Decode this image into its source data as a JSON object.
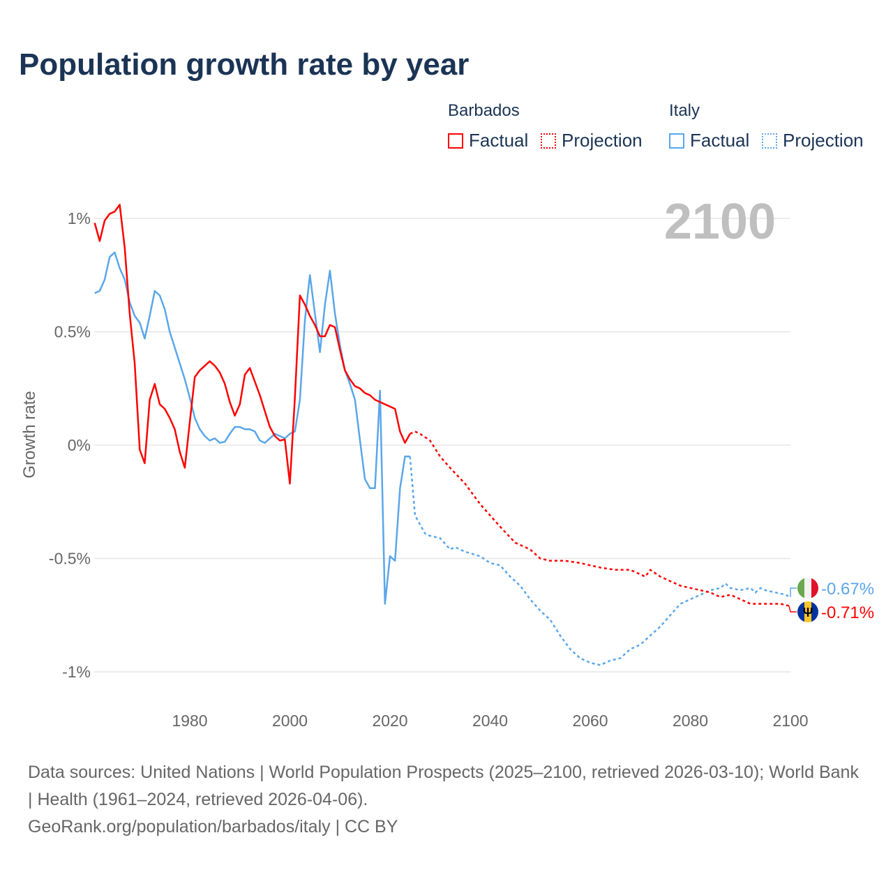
{
  "colors": {
    "barbados": "#ff0000",
    "italy": "#5aa6ea",
    "grid": "#e6e6e6",
    "axis_text": "#666666",
    "year_label": "#bfbfbf"
  },
  "legend": {
    "groups": [
      {
        "name": "Barbados",
        "factual": "Factual",
        "projection": "Projection"
      },
      {
        "name": "Italy",
        "factual": "Factual",
        "projection": "Projection"
      }
    ]
  },
  "footer": {
    "sources": "Data sources: United Nations | World Population Prospects (2025–2100, retrieved 2026-03-10); World Bank | Health (1961–2024, retrieved 2026-04-06).",
    "credit": "GeoRank.org/population/barbados/italy | CC BY"
  },
  "chart_data": {
    "type": "line",
    "title": "Population growth rate by year",
    "ylabel": "Growth rate",
    "xlabel": "",
    "current_year_label": "2100",
    "xlim": [
      1961,
      2100
    ],
    "ylim": [
      -1.15,
      1.1
    ],
    "xticks": [
      1980,
      2000,
      2020,
      2040,
      2060,
      2080,
      2100
    ],
    "yticks": [
      {
        "v": 1,
        "label": "1%"
      },
      {
        "v": 0.5,
        "label": "0.5%"
      },
      {
        "v": 0,
        "label": "0%"
      },
      {
        "v": -0.5,
        "label": "-0.5%"
      },
      {
        "v": -1,
        "label": "-1%"
      }
    ],
    "series": [
      {
        "name": "Barbados",
        "color": "#ff0000",
        "end_label": "-0.71%",
        "factual": {
          "start": 1961,
          "values": [
            0.98,
            0.9,
            0.99,
            1.02,
            1.03,
            1.06,
            0.87,
            0.58,
            0.36,
            -0.02,
            -0.08,
            0.2,
            0.27,
            0.18,
            0.16,
            0.12,
            0.07,
            -0.03,
            -0.1,
            0.1,
            0.3,
            0.33,
            0.35,
            0.37,
            0.35,
            0.32,
            0.27,
            0.19,
            0.13,
            0.18,
            0.31,
            0.34,
            0.28,
            0.22,
            0.15,
            0.08,
            0.04,
            0.02,
            0.025,
            -0.17,
            0.21,
            0.66,
            0.62,
            0.57,
            0.53,
            0.48,
            0.48,
            0.53,
            0.52,
            0.42,
            0.33,
            0.29,
            0.26,
            0.25,
            0.23,
            0.22,
            0.2,
            0.19,
            0.18,
            0.17,
            0.16,
            0.06,
            0.01,
            0.05
          ]
        },
        "projection": {
          "x": [
            2024,
            2025,
            2026,
            2028,
            2030,
            2032,
            2035,
            2038,
            2040,
            2042,
            2045,
            2048,
            2050,
            2052,
            2055,
            2058,
            2060,
            2062,
            2065,
            2068,
            2070,
            2071,
            2072,
            2074,
            2076,
            2078,
            2080,
            2082,
            2084,
            2086,
            2088,
            2090,
            2092,
            2094,
            2096,
            2098,
            2100
          ],
          "values": [
            0.05,
            0.06,
            0.05,
            0.02,
            -0.05,
            -0.1,
            -0.17,
            -0.26,
            -0.31,
            -0.36,
            -0.43,
            -0.46,
            -0.5,
            -0.51,
            -0.51,
            -0.52,
            -0.53,
            -0.54,
            -0.55,
            -0.55,
            -0.57,
            -0.58,
            -0.55,
            -0.58,
            -0.6,
            -0.62,
            -0.63,
            -0.64,
            -0.65,
            -0.67,
            -0.66,
            -0.68,
            -0.7,
            -0.7,
            -0.7,
            -0.7,
            -0.71
          ]
        }
      },
      {
        "name": "Italy",
        "color": "#5aa6ea",
        "end_label": "-0.67%",
        "factual": {
          "start": 1961,
          "values": [
            0.67,
            0.68,
            0.73,
            0.83,
            0.85,
            0.78,
            0.73,
            0.63,
            0.57,
            0.54,
            0.47,
            0.57,
            0.68,
            0.66,
            0.6,
            0.5,
            0.43,
            0.36,
            0.29,
            0.21,
            0.12,
            0.07,
            0.04,
            0.02,
            0.03,
            0.01,
            0.015,
            0.05,
            0.08,
            0.08,
            0.07,
            0.07,
            0.06,
            0.02,
            0.01,
            0.03,
            0.05,
            0.04,
            0.03,
            0.05,
            0.06,
            0.2,
            0.55,
            0.75,
            0.58,
            0.41,
            0.62,
            0.77,
            0.58,
            0.44,
            0.33,
            0.27,
            0.2,
            0.02,
            -0.15,
            -0.19,
            -0.19,
            0.24,
            -0.7,
            -0.49,
            -0.51,
            -0.19,
            -0.05,
            -0.05
          ]
        },
        "projection": {
          "x": [
            2024,
            2025,
            2026,
            2027,
            2028,
            2030,
            2032,
            2033,
            2035,
            2038,
            2040,
            2042,
            2044,
            2046,
            2048,
            2050,
            2052,
            2054,
            2056,
            2058,
            2060,
            2062,
            2064,
            2066,
            2068,
            2070,
            2072,
            2074,
            2076,
            2078,
            2080,
            2082,
            2084,
            2086,
            2087,
            2088,
            2090,
            2092,
            2093,
            2094,
            2095,
            2097,
            2099,
            2100
          ],
          "values": [
            -0.05,
            -0.31,
            -0.35,
            -0.39,
            -0.4,
            -0.41,
            -0.46,
            -0.45,
            -0.47,
            -0.49,
            -0.52,
            -0.53,
            -0.58,
            -0.62,
            -0.68,
            -0.73,
            -0.77,
            -0.84,
            -0.9,
            -0.94,
            -0.96,
            -0.97,
            -0.95,
            -0.94,
            -0.9,
            -0.88,
            -0.84,
            -0.8,
            -0.75,
            -0.7,
            -0.68,
            -0.66,
            -0.64,
            -0.63,
            -0.61,
            -0.63,
            -0.64,
            -0.63,
            -0.65,
            -0.63,
            -0.64,
            -0.65,
            -0.66,
            -0.67
          ]
        }
      }
    ]
  }
}
